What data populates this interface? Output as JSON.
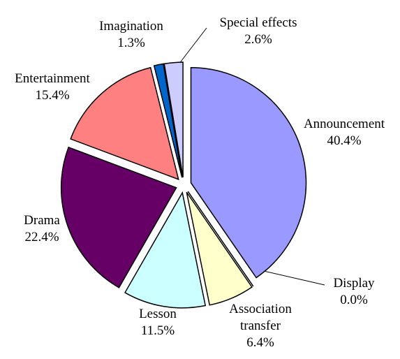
{
  "chart_data": {
    "type": "pie",
    "categories": [
      "Announcement",
      "Display",
      "Association transfer",
      "Lesson",
      "Drama",
      "Entertainment",
      "Imagination",
      "Special effects"
    ],
    "values": [
      40.4,
      0.0,
      6.4,
      11.5,
      22.4,
      15.4,
      1.3,
      2.6
    ],
    "value_labels": [
      "40.4%",
      "0.0%",
      "6.4%",
      "11.5%",
      "22.4%",
      "15.4%",
      "1.3%",
      "2.6%"
    ],
    "colors": [
      "#9999ff",
      "#993366",
      "#ffffcc",
      "#ccffff",
      "#660066",
      "#ff8080",
      "#0066cc",
      "#ccccff"
    ]
  }
}
